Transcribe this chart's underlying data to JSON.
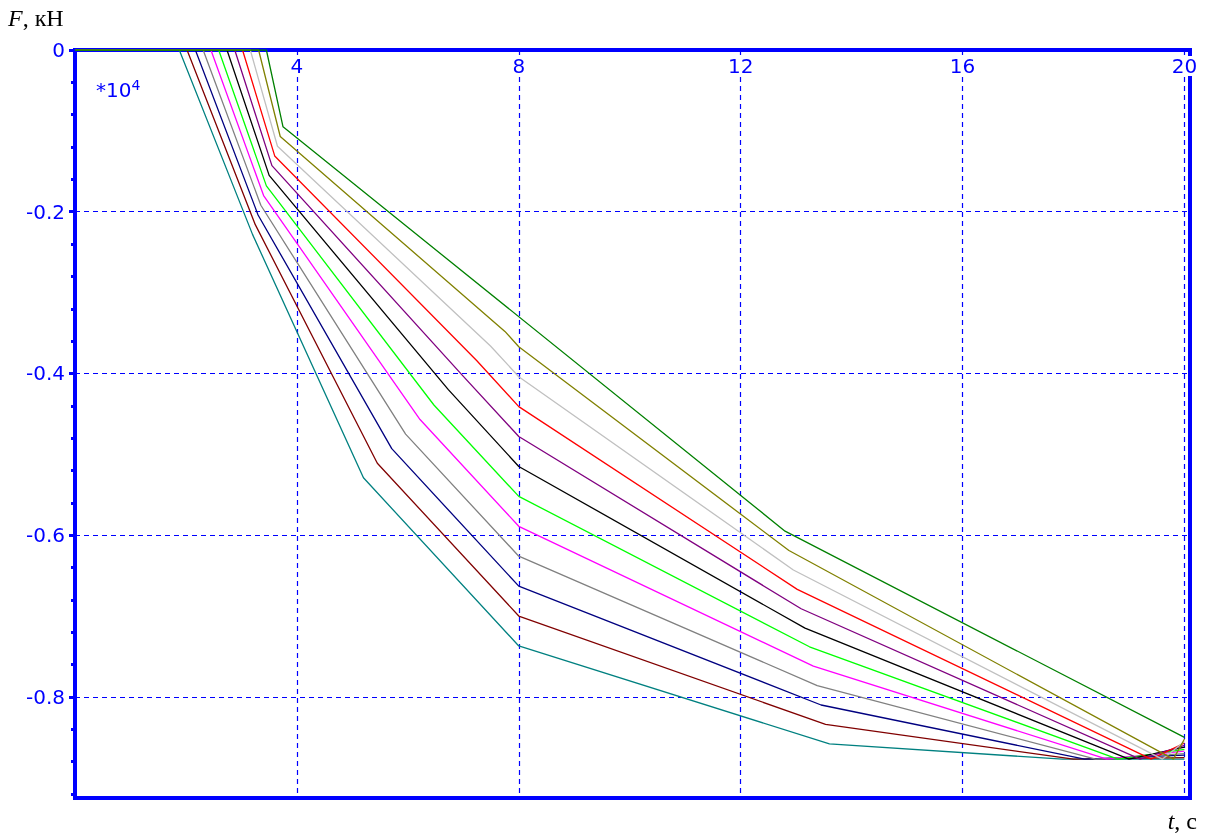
{
  "chart_data": {
    "type": "line",
    "xlabel": "t, с",
    "ylabel": "F, кН",
    "annotations": [
      "*10$^{4}$"
    ],
    "xlim": [
      0,
      20.1
    ],
    "xticks": [
      4,
      8,
      12,
      16,
      20
    ],
    "ylim": [
      -0.925,
      0
    ],
    "yticks": [
      0,
      -0.2,
      -0.4,
      -0.6,
      -0.8
    ],
    "grid": true,
    "marker": "none",
    "line_style": "solid",
    "series": [
      {
        "color": "#008080",
        "x": [
          0,
          1.88,
          3.2,
          5.2,
          8,
          13.6,
          17.8,
          20
        ],
        "values": [
          0,
          0,
          -0.228,
          -0.529,
          -0.737,
          -0.858,
          -0.877,
          -0.877
        ]
      },
      {
        "color": "#800000",
        "x": [
          0,
          2.02,
          3.25,
          5.45,
          8,
          13.53,
          18.0,
          20
        ],
        "values": [
          0,
          0,
          -0.216,
          -0.511,
          -0.7,
          -0.834,
          -0.877,
          -0.875
        ]
      },
      {
        "color": "#000080",
        "x": [
          0,
          2.17,
          3.3,
          5.71,
          8,
          13.45,
          18.2,
          20
        ],
        "values": [
          0,
          0,
          -0.204,
          -0.493,
          -0.663,
          -0.81,
          -0.877,
          -0.872
        ]
      },
      {
        "color": "#808080",
        "x": [
          0,
          2.31,
          3.35,
          5.96,
          8,
          13.38,
          18.4,
          20
        ],
        "values": [
          0,
          0,
          -0.192,
          -0.475,
          -0.626,
          -0.786,
          -0.877,
          -0.87
        ]
      },
      {
        "color": "#ff00ff",
        "x": [
          0,
          2.45,
          3.4,
          6.22,
          8,
          13.31,
          18.6,
          20
        ],
        "values": [
          0,
          0,
          -0.18,
          -0.457,
          -0.589,
          -0.762,
          -0.877,
          -0.867
        ]
      },
      {
        "color": "#00ff00",
        "x": [
          0,
          2.59,
          3.45,
          6.47,
          8,
          13.24,
          18.8,
          20
        ],
        "values": [
          0,
          0,
          -0.168,
          -0.439,
          -0.552,
          -0.738,
          -0.877,
          -0.865
        ]
      },
      {
        "color": "#000000",
        "x": [
          0,
          2.74,
          3.5,
          6.73,
          8,
          13.16,
          19.0,
          20
        ],
        "values": [
          0,
          0,
          -0.155,
          -0.42,
          -0.515,
          -0.715,
          -0.877,
          -0.862
        ]
      },
      {
        "color": "#800080",
        "x": [
          0,
          2.88,
          3.55,
          6.98,
          8,
          13.09,
          19.2,
          20
        ],
        "values": [
          0,
          0,
          -0.143,
          -0.402,
          -0.478,
          -0.691,
          -0.877,
          -0.86
        ]
      },
      {
        "color": "#ff0000",
        "x": [
          0,
          3.02,
          3.6,
          7.24,
          8,
          13.02,
          19.4,
          20
        ],
        "values": [
          0,
          0,
          -0.131,
          -0.384,
          -0.441,
          -0.667,
          -0.877,
          -0.857
        ]
      },
      {
        "color": "#c0c0c0",
        "x": [
          0,
          3.16,
          3.65,
          7.49,
          8,
          12.95,
          19.6,
          20
        ],
        "values": [
          0,
          0,
          -0.119,
          -0.366,
          -0.404,
          -0.643,
          -0.877,
          -0.855
        ]
      },
      {
        "color": "#808000",
        "x": [
          0,
          3.31,
          3.7,
          7.75,
          8,
          12.87,
          19.8,
          20
        ],
        "values": [
          0,
          0,
          -0.107,
          -0.348,
          -0.367,
          -0.619,
          -0.877,
          -0.852
        ]
      },
      {
        "color": "#008000",
        "x": [
          0,
          3.45,
          3.75,
          12.8,
          20
        ],
        "values": [
          0,
          0,
          -0.095,
          -0.595,
          -0.85
        ]
      }
    ]
  }
}
